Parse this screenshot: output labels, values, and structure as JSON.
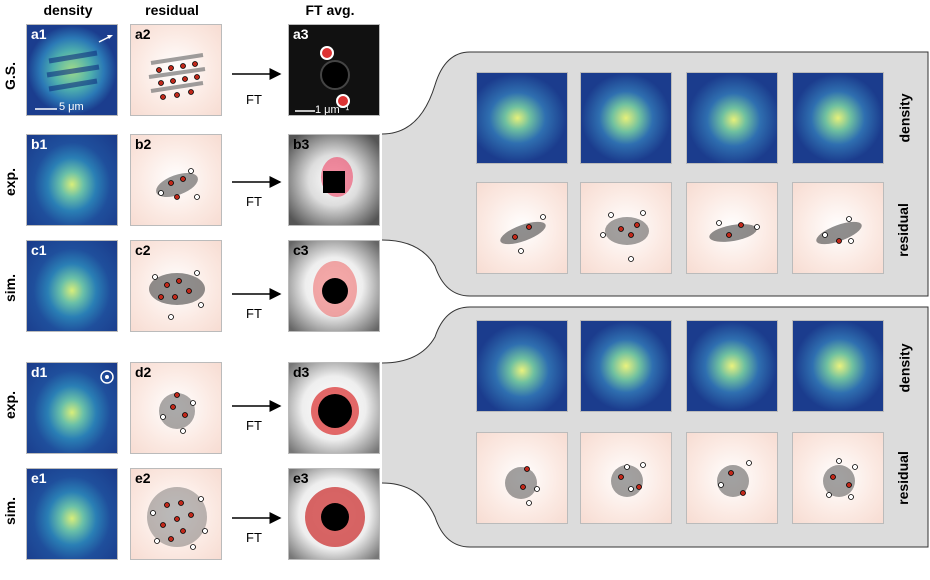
{
  "columns": {
    "density": "density",
    "residual": "residual",
    "ft": "FT avg."
  },
  "rows": {
    "gs": "G.S.",
    "exp_b": "exp.",
    "sim_c": "sim.",
    "exp_d": "exp.",
    "sim_e": "sim."
  },
  "panels": {
    "a1": "a1",
    "a2": "a2",
    "a3": "a3",
    "b1": "b1",
    "b2": "b2",
    "b3": "b3",
    "c1": "c1",
    "c2": "c2",
    "c3": "c3",
    "d1": "d1",
    "d2": "d2",
    "d3": "d3",
    "e1": "e1",
    "e2": "e2",
    "e3": "e3"
  },
  "scalebars": {
    "real": "5 μm",
    "ft": "1 μm⁻¹"
  },
  "arrow_label": "FT",
  "side_labels": {
    "density": "density",
    "residual": "residual"
  }
}
